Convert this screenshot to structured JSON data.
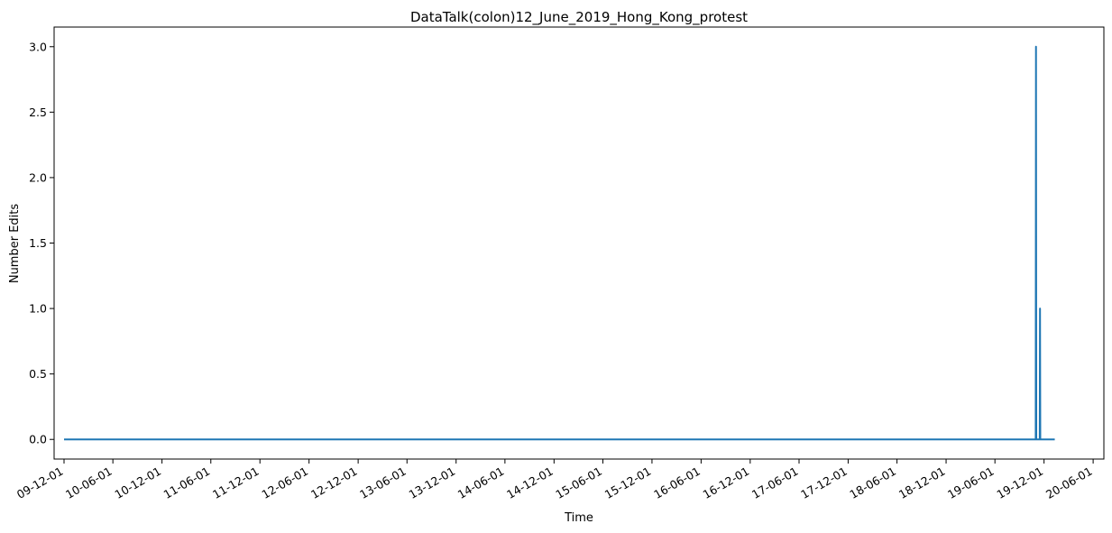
{
  "chart_data": {
    "type": "line",
    "title": "DataTalk(colon)12_June_2019_Hong_Kong_protest",
    "xlabel": "Time",
    "ylabel": "Number Edits",
    "xlim": [
      "2009-10-25",
      "2020-07-11"
    ],
    "ylim": [
      -0.15,
      3.15
    ],
    "grid": false,
    "legend": "none",
    "x_ticks": [
      {
        "date": "2009-12-01",
        "label": "09-12-01"
      },
      {
        "date": "2010-06-01",
        "label": "10-06-01"
      },
      {
        "date": "2010-12-01",
        "label": "10-12-01"
      },
      {
        "date": "2011-06-01",
        "label": "11-06-01"
      },
      {
        "date": "2011-12-01",
        "label": "11-12-01"
      },
      {
        "date": "2012-06-01",
        "label": "12-06-01"
      },
      {
        "date": "2012-12-01",
        "label": "12-12-01"
      },
      {
        "date": "2013-06-01",
        "label": "13-06-01"
      },
      {
        "date": "2013-12-01",
        "label": "13-12-01"
      },
      {
        "date": "2014-06-01",
        "label": "14-06-01"
      },
      {
        "date": "2014-12-01",
        "label": "14-12-01"
      },
      {
        "date": "2015-06-01",
        "label": "15-06-01"
      },
      {
        "date": "2015-12-01",
        "label": "15-12-01"
      },
      {
        "date": "2016-06-01",
        "label": "16-06-01"
      },
      {
        "date": "2016-12-01",
        "label": "16-12-01"
      },
      {
        "date": "2017-06-01",
        "label": "17-06-01"
      },
      {
        "date": "2017-12-01",
        "label": "17-12-01"
      },
      {
        "date": "2018-06-01",
        "label": "18-06-01"
      },
      {
        "date": "2018-12-01",
        "label": "18-12-01"
      },
      {
        "date": "2019-06-01",
        "label": "19-06-01"
      },
      {
        "date": "2019-12-01",
        "label": "19-12-01"
      },
      {
        "date": "2020-06-01",
        "label": "20-06-01"
      }
    ],
    "y_ticks": [
      {
        "value": 0.0,
        "label": "0.0"
      },
      {
        "value": 0.5,
        "label": "0.5"
      },
      {
        "value": 1.0,
        "label": "1.0"
      },
      {
        "value": 1.5,
        "label": "1.5"
      },
      {
        "value": 2.0,
        "label": "2.0"
      },
      {
        "value": 2.5,
        "label": "2.5"
      },
      {
        "value": 3.0,
        "label": "3.0"
      }
    ],
    "series": [
      {
        "color": "#1f77b4",
        "points": [
          {
            "x": "2009-12-01",
            "y": 0
          },
          {
            "x": "2019-10-31",
            "y": 0
          },
          {
            "x": "2019-11-01",
            "y": 3
          },
          {
            "x": "2019-11-02",
            "y": 0
          },
          {
            "x": "2019-11-15",
            "y": 0
          },
          {
            "x": "2019-11-16",
            "y": 1
          },
          {
            "x": "2019-11-17",
            "y": 0
          },
          {
            "x": "2020-01-10",
            "y": 0
          }
        ]
      }
    ]
  }
}
